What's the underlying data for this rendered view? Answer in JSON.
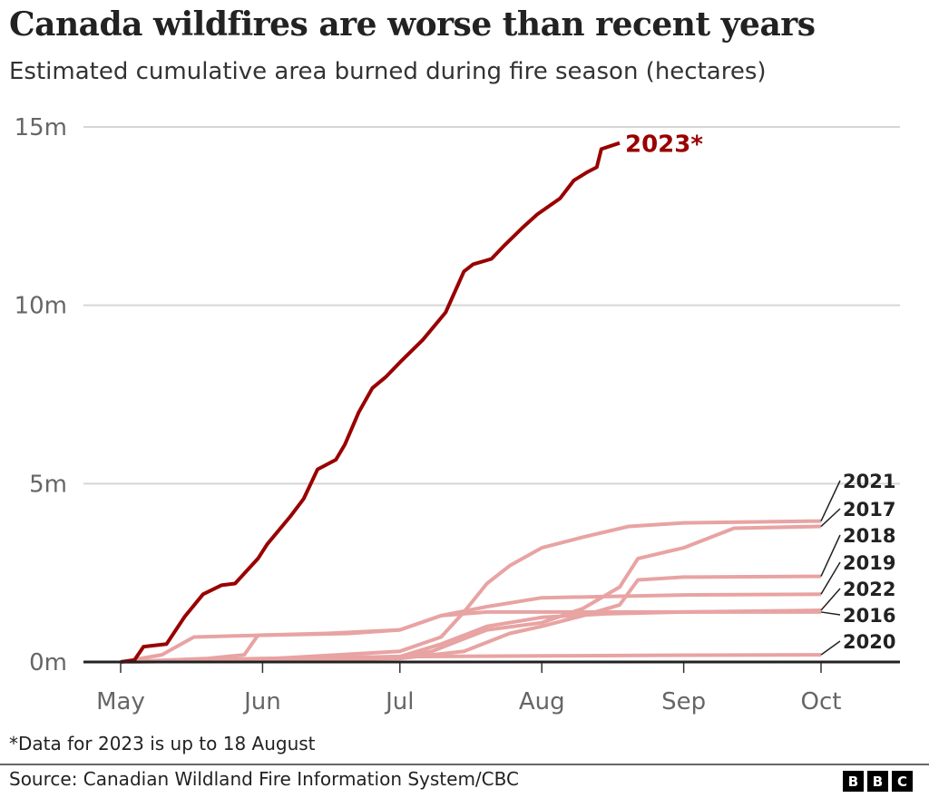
{
  "title": "Canada wildfires are worse than recent years",
  "subtitle": "Estimated cumulative area burned during fire season (hectares)",
  "note": "*Data for 2023 is up to 18 August",
  "source": "Source: Canadian Wildland Fire Information System/CBC",
  "logo": "BBC",
  "chart_data": {
    "type": "line",
    "title": "Canada wildfires are worse than recent years",
    "ylabel": "",
    "xlabel": "",
    "ylim": [
      0,
      15000000
    ],
    "yticks": [
      {
        "value": 0,
        "label": "0m"
      },
      {
        "value": 5000000,
        "label": "5m"
      },
      {
        "value": 10000000,
        "label": "10m"
      },
      {
        "value": 15000000,
        "label": "15m"
      }
    ],
    "xlim": [
      "05-01",
      "10-01"
    ],
    "xticks": [
      {
        "value": "05-01",
        "label": "May"
      },
      {
        "value": "06-01",
        "label": "Jun"
      },
      {
        "value": "07-01",
        "label": "Jul"
      },
      {
        "value": "08-01",
        "label": "Aug"
      },
      {
        "value": "09-01",
        "label": "Sep"
      },
      {
        "value": "10-01",
        "label": "Oct"
      }
    ],
    "grid": "horizontal",
    "highlight_color": "#990000",
    "other_color": "#e8a3a3",
    "series": [
      {
        "name": "2021",
        "x": [
          "05-01",
          "06-01",
          "07-01",
          "07-10",
          "07-15",
          "07-20",
          "07-25",
          "08-01",
          "08-10",
          "08-20",
          "09-01",
          "10-01"
        ],
        "y": [
          0,
          80000,
          300000,
          700000,
          1400000,
          2200000,
          2700000,
          3200000,
          3500000,
          3800000,
          3900000,
          3950000
        ]
      },
      {
        "name": "2017",
        "x": [
          "05-01",
          "06-01",
          "07-01",
          "07-08",
          "07-20",
          "08-01",
          "08-10",
          "08-18",
          "08-22",
          "09-01",
          "09-12",
          "10-01"
        ],
        "y": [
          0,
          80000,
          150000,
          300000,
          900000,
          1100000,
          1500000,
          2100000,
          2900000,
          3200000,
          3750000,
          3800000
        ]
      },
      {
        "name": "2018",
        "x": [
          "05-01",
          "06-01",
          "07-01",
          "07-15",
          "07-25",
          "08-01",
          "08-10",
          "08-18",
          "08-22",
          "09-01",
          "10-01"
        ],
        "y": [
          0,
          50000,
          100000,
          300000,
          800000,
          1000000,
          1300000,
          1600000,
          2300000,
          2380000,
          2400000
        ]
      },
      {
        "name": "2019",
        "x": [
          "05-01",
          "05-10",
          "05-17",
          "06-01",
          "06-20",
          "07-01",
          "07-10",
          "07-20",
          "08-01",
          "09-01",
          "10-01"
        ],
        "y": [
          0,
          200000,
          700000,
          750000,
          800000,
          900000,
          1300000,
          1550000,
          1800000,
          1880000,
          1900000
        ]
      },
      {
        "name": "2022",
        "x": [
          "05-01",
          "06-01",
          "07-01",
          "07-10",
          "07-20",
          "08-01",
          "08-15",
          "09-01",
          "10-01"
        ],
        "y": [
          0,
          50000,
          150000,
          500000,
          1000000,
          1250000,
          1350000,
          1400000,
          1450000
        ]
      },
      {
        "name": "2016",
        "x": [
          "05-01",
          "05-20",
          "05-28",
          "05-31",
          "06-15",
          "07-01",
          "07-10",
          "07-20",
          "08-01",
          "09-01",
          "10-01"
        ],
        "y": [
          0,
          100000,
          200000,
          750000,
          800000,
          900000,
          1300000,
          1400000,
          1400000,
          1400000,
          1400000
        ]
      },
      {
        "name": "2020",
        "x": [
          "05-01",
          "06-01",
          "07-01",
          "08-01",
          "09-01",
          "10-01"
        ],
        "y": [
          0,
          100000,
          150000,
          170000,
          190000,
          200000
        ]
      },
      {
        "name": "2023*",
        "x": [
          "05-01",
          "05-04",
          "05-06",
          "05-11",
          "05-15",
          "05-19",
          "05-23",
          "05-26",
          "05-31",
          "06-02",
          "06-07",
          "06-10",
          "06-13",
          "06-17",
          "06-19",
          "06-22",
          "06-25",
          "06-28",
          "07-01",
          "07-06",
          "07-11",
          "07-15",
          "07-17",
          "07-21",
          "07-24",
          "07-28",
          "07-31",
          "08-05",
          "08-08",
          "08-11",
          "08-13",
          "08-14",
          "08-18"
        ],
        "y": [
          0,
          50000,
          430000,
          500000,
          1270000,
          1900000,
          2150000,
          2200000,
          2900000,
          3300000,
          4070000,
          4580000,
          5400000,
          5670000,
          6100000,
          7000000,
          7680000,
          8000000,
          8400000,
          9030000,
          9800000,
          10950000,
          11150000,
          11300000,
          11700000,
          12200000,
          12550000,
          13000000,
          13500000,
          13740000,
          13870000,
          14380000,
          14550000
        ]
      }
    ]
  }
}
